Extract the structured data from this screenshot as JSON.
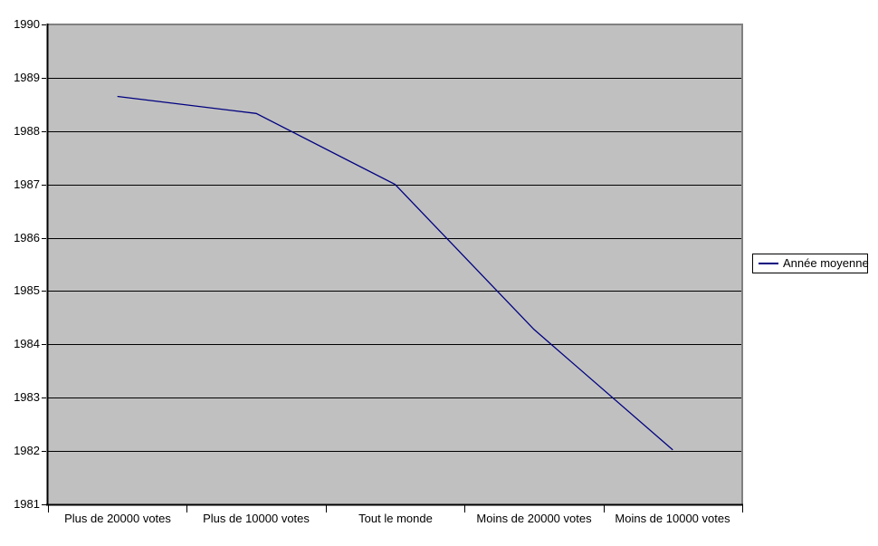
{
  "chart_data": {
    "type": "line",
    "title": "",
    "categories": [
      "Plus de 20000 votes",
      "Plus de 10000 votes",
      "Tout le monde",
      "Moins de 20000 votes",
      "Moins de 10000 votes"
    ],
    "series": [
      {
        "name": "Année moyenne",
        "color": "#000080",
        "values": [
          1988.65,
          1988.33,
          1987.0,
          1984.28,
          1982.02
        ]
      }
    ],
    "xlabel": "",
    "ylabel": "",
    "ylim": [
      1981,
      1990
    ],
    "yticks": [
      1990,
      1989,
      1988,
      1987,
      1986,
      1985,
      1984,
      1983,
      1982,
      1981
    ],
    "grid": "horizontal",
    "legend_position": "right-middle",
    "colors": {
      "page_background": "#ffffff",
      "plot_background": "#c0c0c0",
      "plot_border": "#808080",
      "gridline": "#000000",
      "axis": "#000000",
      "series_line": "#000080",
      "text": "#000000",
      "legend_background": "#ffffff",
      "legend_border": "#000000"
    }
  }
}
